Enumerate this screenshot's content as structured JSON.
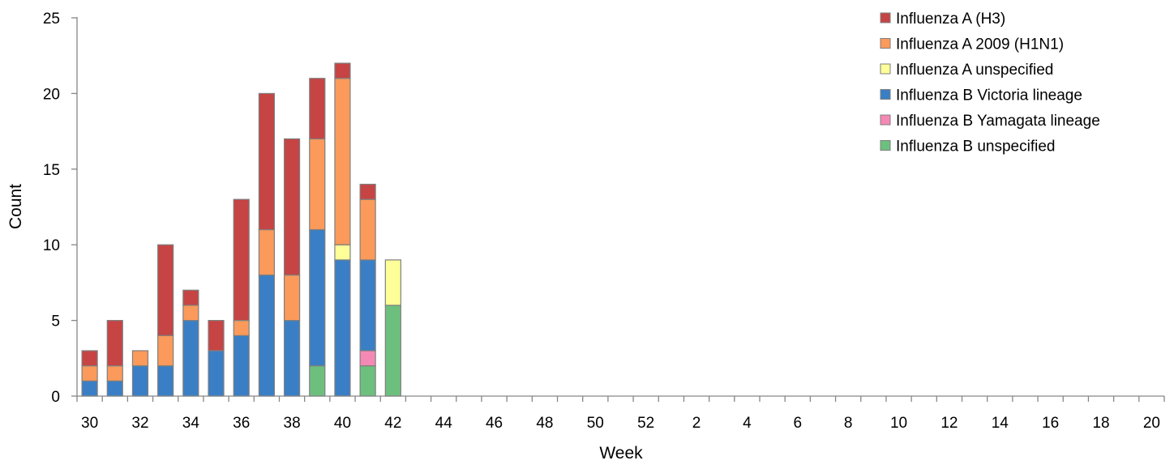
{
  "chart_data": {
    "type": "bar",
    "stacked": true,
    "title": "",
    "xlabel": "Week",
    "ylabel": "Count",
    "ylim": [
      0,
      25
    ],
    "yticks": [
      0,
      5,
      10,
      15,
      20,
      25
    ],
    "grid": false,
    "legend_position": "top-right",
    "categories": [
      "30",
      "31",
      "32",
      "33",
      "34",
      "35",
      "36",
      "37",
      "38",
      "39",
      "40",
      "41",
      "42",
      "43",
      "44",
      "45",
      "46",
      "47",
      "48",
      "49",
      "50",
      "51",
      "52",
      "1",
      "2",
      "3",
      "4",
      "5",
      "6",
      "7",
      "8",
      "9",
      "10",
      "11",
      "12",
      "13",
      "14",
      "15",
      "16",
      "17",
      "18",
      "19",
      "20"
    ],
    "x_tick_labels": [
      "30",
      "32",
      "34",
      "36",
      "38",
      "40",
      "42",
      "44",
      "46",
      "48",
      "50",
      "52",
      "2",
      "4",
      "6",
      "8",
      "10",
      "12",
      "14",
      "16",
      "18",
      "20"
    ],
    "series": [
      {
        "name": "Influenza B unspecified",
        "color": "#6dbf7e",
        "values": [
          0,
          0,
          0,
          0,
          0,
          0,
          0,
          0,
          0,
          2,
          0,
          2,
          6,
          0,
          0,
          0,
          0,
          0,
          0,
          0,
          0,
          0,
          0,
          0,
          0,
          0,
          0,
          0,
          0,
          0,
          0,
          0,
          0,
          0,
          0,
          0,
          0,
          0,
          0,
          0,
          0,
          0,
          0
        ]
      },
      {
        "name": "Influenza B Yamagata lineage",
        "color": "#f589b5",
        "values": [
          0,
          0,
          0,
          0,
          0,
          0,
          0,
          0,
          0,
          0,
          0,
          1,
          0,
          0,
          0,
          0,
          0,
          0,
          0,
          0,
          0,
          0,
          0,
          0,
          0,
          0,
          0,
          0,
          0,
          0,
          0,
          0,
          0,
          0,
          0,
          0,
          0,
          0,
          0,
          0,
          0,
          0,
          0
        ]
      },
      {
        "name": "Influenza B Victoria lineage",
        "color": "#3a7fc5",
        "values": [
          1,
          1,
          2,
          2,
          5,
          3,
          4,
          8,
          5,
          9,
          9,
          6,
          0,
          0,
          0,
          0,
          0,
          0,
          0,
          0,
          0,
          0,
          0,
          0,
          0,
          0,
          0,
          0,
          0,
          0,
          0,
          0,
          0,
          0,
          0,
          0,
          0,
          0,
          0,
          0,
          0,
          0,
          0
        ]
      },
      {
        "name": "Influenza A unspecified",
        "color": "#ffff99",
        "values": [
          0,
          0,
          0,
          0,
          0,
          0,
          0,
          0,
          0,
          0,
          1,
          0,
          3,
          0,
          0,
          0,
          0,
          0,
          0,
          0,
          0,
          0,
          0,
          0,
          0,
          0,
          0,
          0,
          0,
          0,
          0,
          0,
          0,
          0,
          0,
          0,
          0,
          0,
          0,
          0,
          0,
          0,
          0
        ]
      },
      {
        "name": "Influenza A 2009 (H1N1)",
        "color": "#fb9a5a",
        "values": [
          1,
          1,
          1,
          2,
          1,
          0,
          1,
          3,
          3,
          6,
          11,
          4,
          0,
          0,
          0,
          0,
          0,
          0,
          0,
          0,
          0,
          0,
          0,
          0,
          0,
          0,
          0,
          0,
          0,
          0,
          0,
          0,
          0,
          0,
          0,
          0,
          0,
          0,
          0,
          0,
          0,
          0,
          0
        ]
      },
      {
        "name": "Influenza A (H3)",
        "color": "#c64444",
        "values": [
          1,
          3,
          0,
          6,
          1,
          2,
          8,
          9,
          9,
          4,
          1,
          1,
          0,
          0,
          0,
          0,
          0,
          0,
          0,
          0,
          0,
          0,
          0,
          0,
          0,
          0,
          0,
          0,
          0,
          0,
          0,
          0,
          0,
          0,
          0,
          0,
          0,
          0,
          0,
          0,
          0,
          0,
          0
        ]
      }
    ],
    "legend_order": [
      "Influenza A (H3)",
      "Influenza A 2009 (H1N1)",
      "Influenza A unspecified",
      "Influenza B Victoria lineage",
      "Influenza B Yamagata lineage",
      "Influenza B unspecified"
    ]
  }
}
